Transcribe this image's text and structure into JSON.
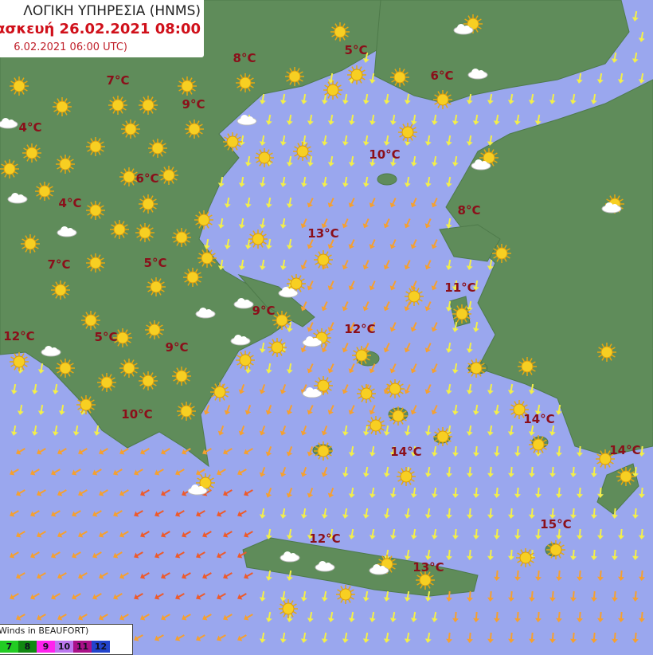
{
  "header": {
    "agency": "ΛΟΓΙΚΗ ΥΠΗΡΕΣΙΑ (HNMS)",
    "forecast_time": "ασκευή 26.02.2021 08:00",
    "run_time": "6.02.2021 06:00 UTC)"
  },
  "legend": {
    "title": "Winds in BEAUFORT)",
    "classes": [
      {
        "label": "7",
        "color": "#22cc22"
      },
      {
        "label": "8",
        "color": "#118811"
      },
      {
        "label": "9",
        "color": "#ff22ee"
      },
      {
        "label": "10",
        "color": "#bb77ee"
      },
      {
        "label": "11",
        "color": "#aa1188"
      },
      {
        "label": "12",
        "color": "#2244cc"
      }
    ]
  },
  "temperatures": [
    "8°C",
    "5°C",
    "6°C",
    "7°C",
    "9°C",
    "4°C",
    "10°C",
    "6°C",
    "4°C",
    "8°C",
    "13°C",
    "7°C",
    "5°C",
    "11°C",
    "9°C",
    "12°C",
    "12°C",
    "5°C",
    "9°C",
    "10°C",
    "14°C",
    "14°C",
    "14°C",
    "15°C",
    "12°C",
    "13°C"
  ],
  "colors": {
    "sea": "#9aa7ee",
    "land": "#5f8c5a",
    "temperature": "#8b0f1a",
    "sun": "#f5c518",
    "wind_low": "#f3ef4a",
    "wind_mid": "#f5a030",
    "wind_high": "#ee5a2a"
  },
  "icons": {
    "weather": "sun-icon",
    "weather_alt": "sun-cloud-icon",
    "wind": "wind-arrow-icon"
  }
}
